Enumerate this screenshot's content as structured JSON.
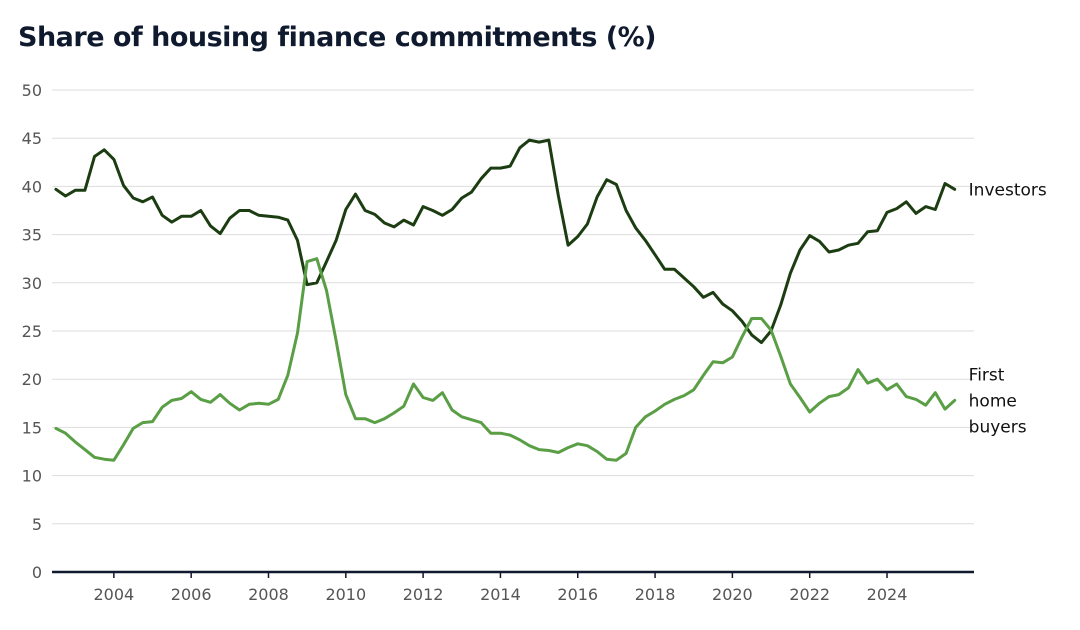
{
  "chart_data": {
    "type": "line",
    "title": "Share of housing finance commitments (%)",
    "xlabel": "",
    "ylabel": "",
    "ylim": [
      0,
      50
    ],
    "xlim": [
      2002.4,
      2026.25
    ],
    "y_ticks": [
      0,
      5,
      10,
      15,
      20,
      25,
      30,
      35,
      40,
      45,
      50
    ],
    "y_tick_labels": [
      "0",
      "5",
      "10",
      "15",
      "20",
      "25",
      "30",
      "35",
      "40",
      "45",
      "50"
    ],
    "x_ticks": [
      2004,
      2006,
      2008,
      2010,
      2012,
      2014,
      2016,
      2018,
      2020,
      2022,
      2024
    ],
    "x_tick_labels": [
      "2004",
      "2006",
      "2008",
      "2010",
      "2012",
      "2014",
      "2016",
      "2018",
      "2020",
      "2022",
      "2024"
    ],
    "grid": "horizontal",
    "legend": "direct labels at line ends (right)",
    "series": [
      {
        "name": "Investors",
        "label_lines": [
          "Investors"
        ],
        "color": "#1c3d12",
        "points": [
          [
            2002.5,
            39.7
          ],
          [
            2002.75,
            39.0
          ],
          [
            2003.0,
            39.6
          ],
          [
            2003.25,
            39.6
          ],
          [
            2003.5,
            43.1
          ],
          [
            2003.75,
            43.8
          ],
          [
            2004.0,
            42.8
          ],
          [
            2004.25,
            40.1
          ],
          [
            2004.5,
            38.8
          ],
          [
            2004.75,
            38.4
          ],
          [
            2005.0,
            38.9
          ],
          [
            2005.25,
            37.0
          ],
          [
            2005.5,
            36.3
          ],
          [
            2005.75,
            36.9
          ],
          [
            2006.0,
            36.9
          ],
          [
            2006.25,
            37.5
          ],
          [
            2006.5,
            35.9
          ],
          [
            2006.75,
            35.1
          ],
          [
            2007.0,
            36.7
          ],
          [
            2007.25,
            37.5
          ],
          [
            2007.5,
            37.5
          ],
          [
            2007.75,
            37.0
          ],
          [
            2008.0,
            36.9
          ],
          [
            2008.25,
            36.8
          ],
          [
            2008.5,
            36.5
          ],
          [
            2008.75,
            34.4
          ],
          [
            2009.0,
            29.8
          ],
          [
            2009.25,
            30.0
          ],
          [
            2009.5,
            32.2
          ],
          [
            2009.75,
            34.4
          ],
          [
            2010.0,
            37.6
          ],
          [
            2010.25,
            39.2
          ],
          [
            2010.5,
            37.5
          ],
          [
            2010.75,
            37.1
          ],
          [
            2011.0,
            36.2
          ],
          [
            2011.25,
            35.8
          ],
          [
            2011.5,
            36.5
          ],
          [
            2011.75,
            36.0
          ],
          [
            2012.0,
            37.9
          ],
          [
            2012.25,
            37.5
          ],
          [
            2012.5,
            37.0
          ],
          [
            2012.75,
            37.6
          ],
          [
            2013.0,
            38.8
          ],
          [
            2013.25,
            39.4
          ],
          [
            2013.5,
            40.8
          ],
          [
            2013.75,
            41.9
          ],
          [
            2014.0,
            41.9
          ],
          [
            2014.25,
            42.1
          ],
          [
            2014.5,
            44.0
          ],
          [
            2014.75,
            44.8
          ],
          [
            2015.0,
            44.6
          ],
          [
            2015.25,
            44.8
          ],
          [
            2015.5,
            39.0
          ],
          [
            2015.75,
            33.9
          ],
          [
            2016.0,
            34.8
          ],
          [
            2016.25,
            36.1
          ],
          [
            2016.5,
            38.9
          ],
          [
            2016.75,
            40.7
          ],
          [
            2017.0,
            40.2
          ],
          [
            2017.25,
            37.5
          ],
          [
            2017.5,
            35.7
          ],
          [
            2017.75,
            34.4
          ],
          [
            2018.0,
            32.9
          ],
          [
            2018.25,
            31.4
          ],
          [
            2018.5,
            31.4
          ],
          [
            2018.75,
            30.5
          ],
          [
            2019.0,
            29.6
          ],
          [
            2019.25,
            28.5
          ],
          [
            2019.5,
            29.0
          ],
          [
            2019.75,
            27.8
          ],
          [
            2020.0,
            27.1
          ],
          [
            2020.25,
            26.0
          ],
          [
            2020.5,
            24.6
          ],
          [
            2020.75,
            23.8
          ],
          [
            2021.0,
            25.0
          ],
          [
            2021.25,
            27.7
          ],
          [
            2021.5,
            31.0
          ],
          [
            2021.75,
            33.4
          ],
          [
            2022.0,
            34.9
          ],
          [
            2022.25,
            34.3
          ],
          [
            2022.5,
            33.2
          ],
          [
            2022.75,
            33.4
          ],
          [
            2023.0,
            33.9
          ],
          [
            2023.25,
            34.1
          ],
          [
            2023.5,
            35.3
          ],
          [
            2023.75,
            35.4
          ],
          [
            2024.0,
            37.3
          ],
          [
            2024.25,
            37.7
          ],
          [
            2024.5,
            38.4
          ],
          [
            2024.75,
            37.2
          ],
          [
            2025.0,
            37.9
          ],
          [
            2025.25,
            37.6
          ],
          [
            2025.5,
            40.3
          ],
          [
            2025.75,
            39.7
          ]
        ]
      },
      {
        "name": "First home buyers",
        "label_lines": [
          "First",
          "home",
          "buyers"
        ],
        "color": "#5a9e45",
        "points": [
          [
            2002.5,
            14.9
          ],
          [
            2002.75,
            14.4
          ],
          [
            2003.0,
            13.5
          ],
          [
            2003.25,
            12.7
          ],
          [
            2003.5,
            11.9
          ],
          [
            2003.75,
            11.7
          ],
          [
            2004.0,
            11.6
          ],
          [
            2004.25,
            13.2
          ],
          [
            2004.5,
            14.9
          ],
          [
            2004.75,
            15.5
          ],
          [
            2005.0,
            15.6
          ],
          [
            2005.25,
            17.1
          ],
          [
            2005.5,
            17.8
          ],
          [
            2005.75,
            18.0
          ],
          [
            2006.0,
            18.7
          ],
          [
            2006.25,
            17.9
          ],
          [
            2006.5,
            17.6
          ],
          [
            2006.75,
            18.4
          ],
          [
            2007.0,
            17.5
          ],
          [
            2007.25,
            16.8
          ],
          [
            2007.5,
            17.4
          ],
          [
            2007.75,
            17.5
          ],
          [
            2008.0,
            17.4
          ],
          [
            2008.25,
            17.9
          ],
          [
            2008.5,
            20.4
          ],
          [
            2008.75,
            24.8
          ],
          [
            2009.0,
            32.2
          ],
          [
            2009.25,
            32.5
          ],
          [
            2009.5,
            29.2
          ],
          [
            2009.75,
            24.0
          ],
          [
            2010.0,
            18.4
          ],
          [
            2010.25,
            15.9
          ],
          [
            2010.5,
            15.9
          ],
          [
            2010.75,
            15.5
          ],
          [
            2011.0,
            15.9
          ],
          [
            2011.25,
            16.5
          ],
          [
            2011.5,
            17.2
          ],
          [
            2011.75,
            19.5
          ],
          [
            2012.0,
            18.1
          ],
          [
            2012.25,
            17.8
          ],
          [
            2012.5,
            18.6
          ],
          [
            2012.75,
            16.8
          ],
          [
            2013.0,
            16.1
          ],
          [
            2013.25,
            15.8
          ],
          [
            2013.5,
            15.5
          ],
          [
            2013.75,
            14.4
          ],
          [
            2014.0,
            14.4
          ],
          [
            2014.25,
            14.2
          ],
          [
            2014.5,
            13.7
          ],
          [
            2014.75,
            13.1
          ],
          [
            2015.0,
            12.7
          ],
          [
            2015.25,
            12.6
          ],
          [
            2015.5,
            12.4
          ],
          [
            2015.75,
            12.9
          ],
          [
            2016.0,
            13.3
          ],
          [
            2016.25,
            13.1
          ],
          [
            2016.5,
            12.5
          ],
          [
            2016.75,
            11.7
          ],
          [
            2017.0,
            11.6
          ],
          [
            2017.25,
            12.3
          ],
          [
            2017.5,
            15.0
          ],
          [
            2017.75,
            16.1
          ],
          [
            2018.0,
            16.7
          ],
          [
            2018.25,
            17.4
          ],
          [
            2018.5,
            17.9
          ],
          [
            2018.75,
            18.3
          ],
          [
            2019.0,
            18.9
          ],
          [
            2019.25,
            20.4
          ],
          [
            2019.5,
            21.8
          ],
          [
            2019.75,
            21.7
          ],
          [
            2020.0,
            22.3
          ],
          [
            2020.25,
            24.4
          ],
          [
            2020.5,
            26.3
          ],
          [
            2020.75,
            26.3
          ],
          [
            2021.0,
            25.1
          ],
          [
            2021.25,
            22.4
          ],
          [
            2021.5,
            19.5
          ],
          [
            2021.75,
            18.1
          ],
          [
            2022.0,
            16.6
          ],
          [
            2022.25,
            17.5
          ],
          [
            2022.5,
            18.2
          ],
          [
            2022.75,
            18.4
          ],
          [
            2023.0,
            19.1
          ],
          [
            2023.25,
            21.0
          ],
          [
            2023.5,
            19.6
          ],
          [
            2023.75,
            20.0
          ],
          [
            2024.0,
            18.9
          ],
          [
            2024.25,
            19.5
          ],
          [
            2024.5,
            18.2
          ],
          [
            2024.75,
            17.9
          ],
          [
            2025.0,
            17.3
          ],
          [
            2025.25,
            18.6
          ],
          [
            2025.5,
            16.9
          ],
          [
            2025.75,
            17.8
          ]
        ]
      }
    ]
  }
}
